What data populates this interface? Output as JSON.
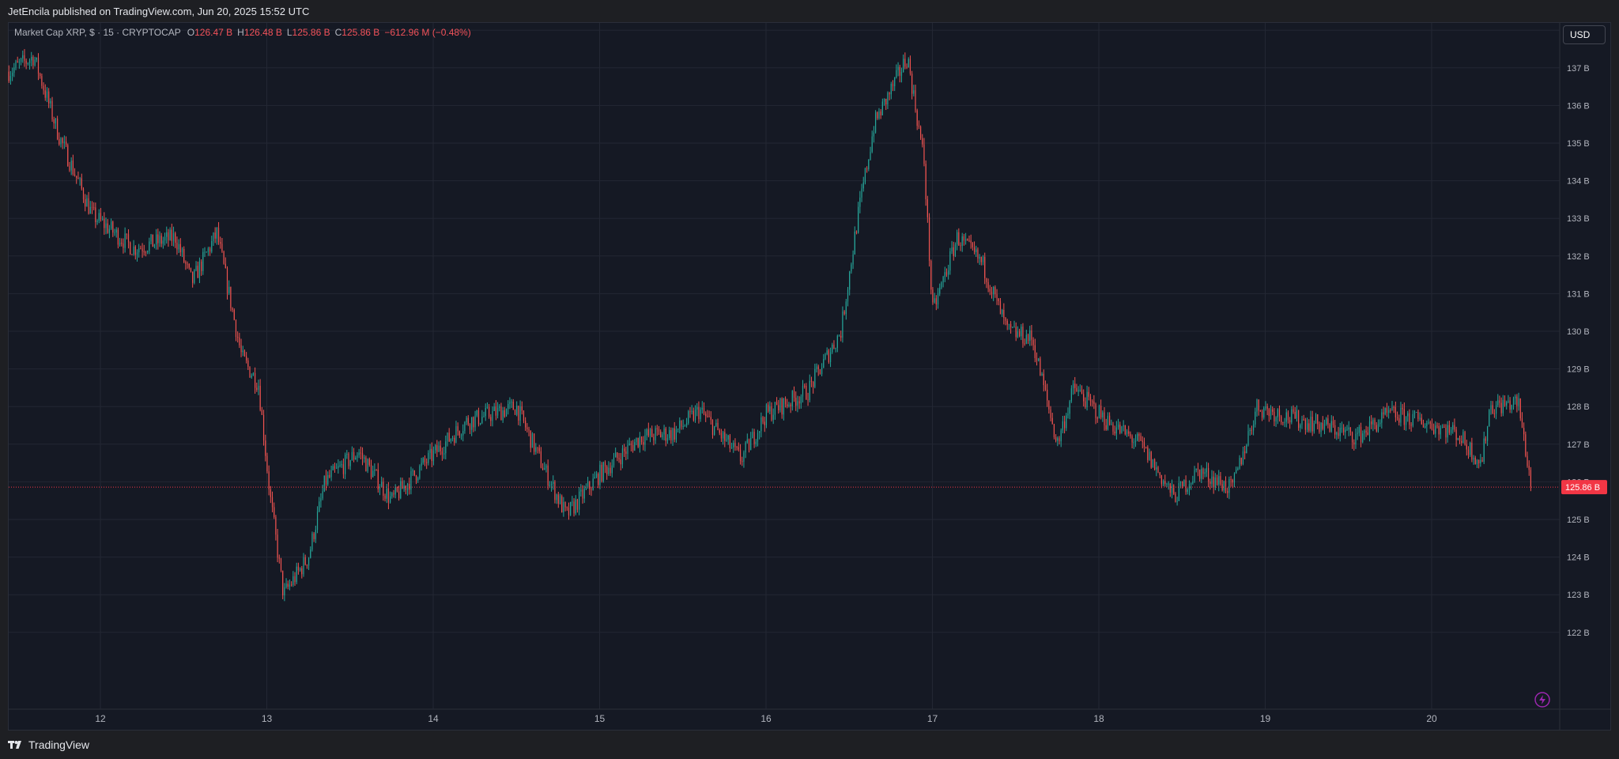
{
  "header": {
    "published": "JetEncila published on TradingView.com, Jun 20, 2025 15:52 UTC"
  },
  "legend": {
    "symbol": "Market Cap XRP, $ · 15 · CRYPTOCAP",
    "o_label": "O",
    "o_value": "126.47 B",
    "h_label": "H",
    "h_value": "126.48 B",
    "l_label": "L",
    "l_value": "125.86 B",
    "c_label": "C",
    "c_value": "125.86 B",
    "change": "−612.96 M (−0.48%)"
  },
  "currency_button": "USD",
  "footer": {
    "brand": "TradingView",
    "logo_icon": "tradingview-logo-icon"
  },
  "colors": {
    "up": "#26a69a",
    "down": "#ef5350",
    "bg": "#151924",
    "grid": "#232733",
    "price_tag": "#f23645",
    "alert_icon": "#9c27b0"
  },
  "chart_data": {
    "type": "candlestick",
    "interval": "15",
    "y_unit": "B USD",
    "ylim": [
      121.2,
      138.9
    ],
    "y_ticks": [
      "122 B",
      "123 B",
      "124 B",
      "125 B",
      "126 B",
      "127 B",
      "128 B",
      "129 B",
      "130 B",
      "131 B",
      "132 B",
      "133 B",
      "134 B",
      "135 B",
      "136 B",
      "137 B",
      "138 B"
    ],
    "x_ticks": [
      "12",
      "13",
      "14",
      "15",
      "16",
      "17",
      "18",
      "19",
      "20"
    ],
    "last_price": 125.86,
    "last_price_label": "125.86 B",
    "close_path_by_day": [
      {
        "day": 11.45,
        "close": 136.9
      },
      {
        "day": 11.6,
        "close": 137.3
      },
      {
        "day": 11.75,
        "close": 135.2
      },
      {
        "day": 11.95,
        "close": 133.1
      },
      {
        "day": 12.2,
        "close": 132.2
      },
      {
        "day": 12.45,
        "close": 132.5
      },
      {
        "day": 12.55,
        "close": 131.3
      },
      {
        "day": 12.7,
        "close": 132.6
      },
      {
        "day": 12.85,
        "close": 129.3
      },
      {
        "day": 12.95,
        "close": 128.6
      },
      {
        "day": 13.02,
        "close": 125.6
      },
      {
        "day": 13.1,
        "close": 123.0
      },
      {
        "day": 13.25,
        "close": 124.0
      },
      {
        "day": 13.35,
        "close": 126.0
      },
      {
        "day": 13.55,
        "close": 126.8
      },
      {
        "day": 13.75,
        "close": 125.5
      },
      {
        "day": 13.95,
        "close": 126.5
      },
      {
        "day": 14.2,
        "close": 127.6
      },
      {
        "day": 14.5,
        "close": 128.0
      },
      {
        "day": 14.65,
        "close": 126.5
      },
      {
        "day": 14.8,
        "close": 125.1
      },
      {
        "day": 15.0,
        "close": 126.2
      },
      {
        "day": 15.25,
        "close": 127.2
      },
      {
        "day": 15.45,
        "close": 127.3
      },
      {
        "day": 15.6,
        "close": 127.9
      },
      {
        "day": 15.85,
        "close": 126.6
      },
      {
        "day": 16.0,
        "close": 127.8
      },
      {
        "day": 16.25,
        "close": 128.4
      },
      {
        "day": 16.45,
        "close": 130.0
      },
      {
        "day": 16.55,
        "close": 133.0
      },
      {
        "day": 16.65,
        "close": 135.5
      },
      {
        "day": 16.85,
        "close": 137.3
      },
      {
        "day": 16.95,
        "close": 134.5
      },
      {
        "day": 17.0,
        "close": 130.5
      },
      {
        "day": 17.15,
        "close": 132.5
      },
      {
        "day": 17.3,
        "close": 131.8
      },
      {
        "day": 17.45,
        "close": 130.0
      },
      {
        "day": 17.6,
        "close": 129.8
      },
      {
        "day": 17.75,
        "close": 127.0
      },
      {
        "day": 17.85,
        "close": 128.5
      },
      {
        "day": 18.05,
        "close": 127.6
      },
      {
        "day": 18.25,
        "close": 127.0
      },
      {
        "day": 18.45,
        "close": 125.6
      },
      {
        "day": 18.6,
        "close": 126.3
      },
      {
        "day": 18.8,
        "close": 125.8
      },
      {
        "day": 18.95,
        "close": 128.0
      },
      {
        "day": 19.15,
        "close": 127.7
      },
      {
        "day": 19.35,
        "close": 127.5
      },
      {
        "day": 19.55,
        "close": 127.2
      },
      {
        "day": 19.75,
        "close": 127.8
      },
      {
        "day": 19.95,
        "close": 127.6
      },
      {
        "day": 20.15,
        "close": 127.3
      },
      {
        "day": 20.3,
        "close": 126.5
      },
      {
        "day": 20.35,
        "close": 128.0
      },
      {
        "day": 20.52,
        "close": 128.1
      },
      {
        "day": 20.6,
        "close": 125.86
      }
    ]
  }
}
